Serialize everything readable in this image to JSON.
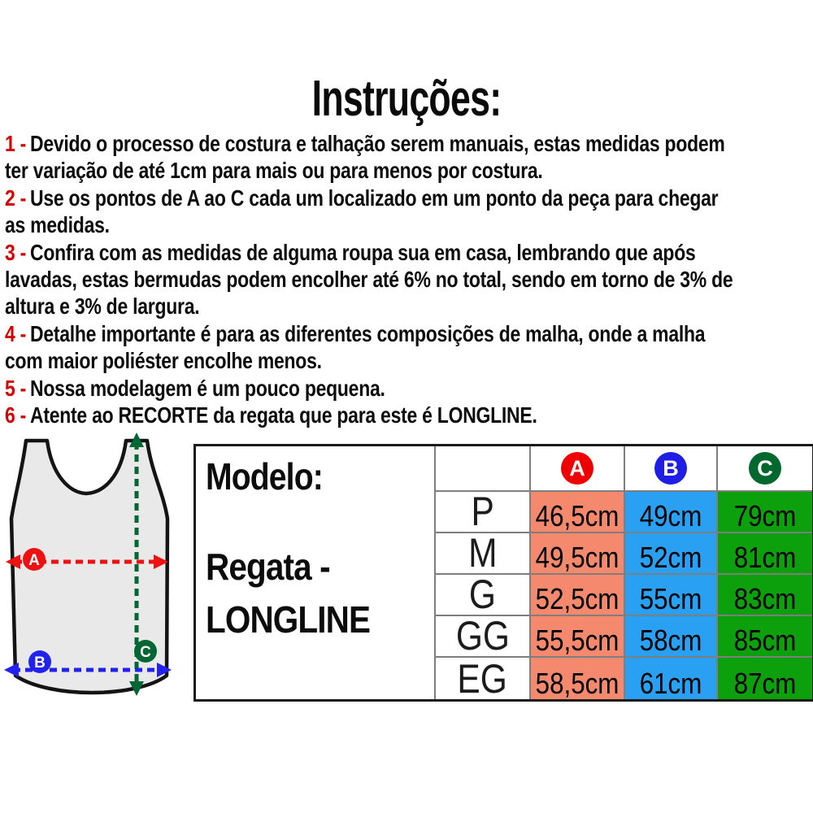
{
  "title": "Instruções:",
  "instructions": [
    {
      "num": "1 -",
      "lines": [
        "Devido o processo de costura e talhação serem manuais, estas medidas podem",
        "ter variação de até 1cm para mais ou para menos por costura."
      ]
    },
    {
      "num": "2 -",
      "lines": [
        "Use os pontos de A ao C cada um localizado em um ponto da peça para chegar",
        "as medidas."
      ]
    },
    {
      "num": "3 -",
      "lines": [
        "Confira com as medidas de alguma roupa sua em casa, lembrando que após",
        "lavadas, estas bermudas podem encolher até 6% no total, sendo em torno de 3% de",
        "altura e 3% de largura."
      ]
    },
    {
      "num": "4 -",
      "lines": [
        "Detalhe importante é para as diferentes composições de malha, onde a malha",
        "com maior poliéster encolhe menos."
      ]
    },
    {
      "num": "5 -",
      "lines": [
        "Nossa modelagem é um pouco pequena."
      ]
    },
    {
      "num": "6 -",
      "lines": [
        "Atente ao RECORTE da regata que para este é LONGLINE."
      ]
    }
  ],
  "diagram": {
    "labels": {
      "a": "A",
      "b": "B",
      "c": "C"
    },
    "colors": {
      "a": "#ee1111",
      "b": "#2222ee",
      "c": "#006633",
      "shirt_fill": "#e9e9e9",
      "shirt_outline": "#141414"
    }
  },
  "table": {
    "model_label": "Modelo:",
    "model_name_lines": [
      "Regata -",
      "LONGLINE"
    ],
    "columns": [
      {
        "label": "A",
        "badge_color": "#ee0000",
        "cell_color": "#f5896d"
      },
      {
        "label": "B",
        "badge_color": "#1e1ee6",
        "cell_color": "#2aa0f2"
      },
      {
        "label": "C",
        "badge_color": "#00682d",
        "cell_color": "#0ca00c"
      }
    ],
    "rows": [
      {
        "size": "P",
        "values": [
          "46,5cm",
          "49cm",
          "79cm"
        ]
      },
      {
        "size": "M",
        "values": [
          "49,5cm",
          "52cm",
          "81cm"
        ]
      },
      {
        "size": "G",
        "values": [
          "52,5cm",
          "55cm",
          "83cm"
        ]
      },
      {
        "size": "GG",
        "values": [
          "55,5cm",
          "58cm",
          "85cm"
        ]
      },
      {
        "size": "EG",
        "values": [
          "58,5cm",
          "61cm",
          "87cm"
        ]
      }
    ]
  }
}
